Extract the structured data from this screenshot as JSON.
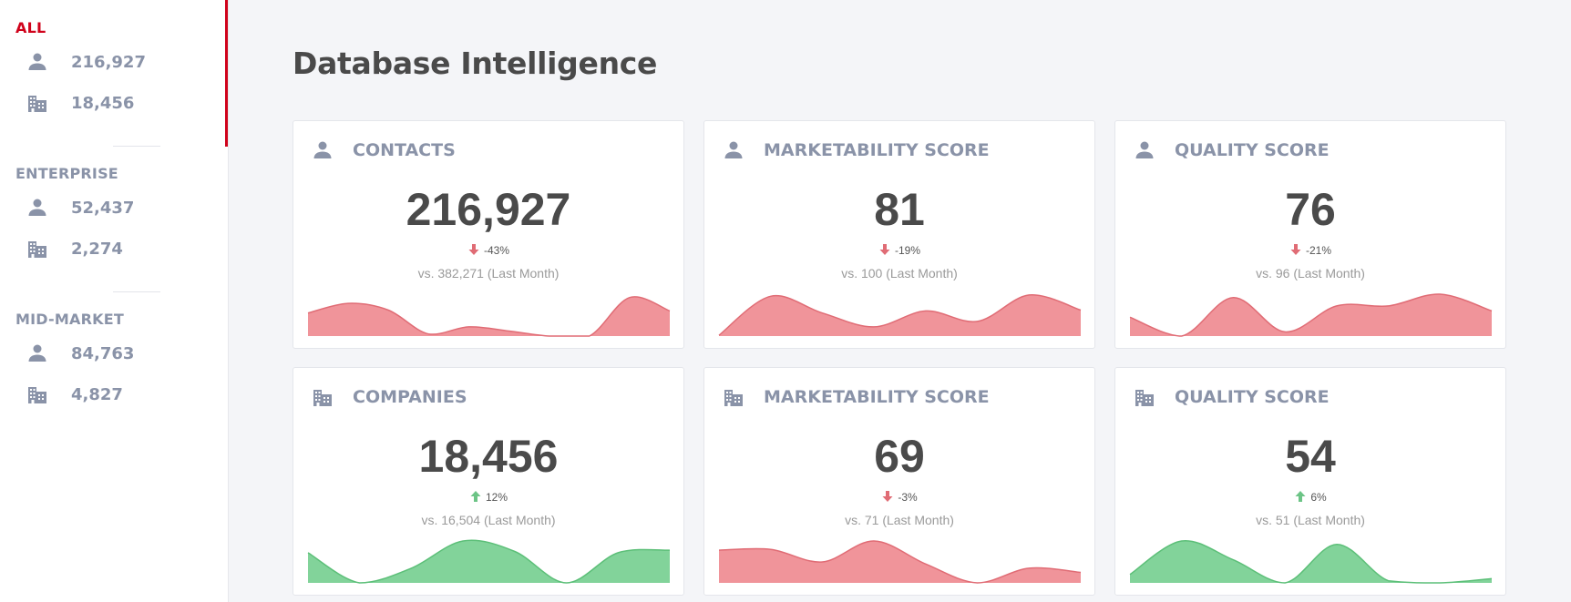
{
  "sidebar": {
    "segments": [
      {
        "title": "ALL",
        "active": true,
        "contacts": "216,927",
        "companies": "18,456"
      },
      {
        "title": "ENTERPRISE",
        "active": false,
        "contacts": "52,437",
        "companies": "2,274"
      },
      {
        "title": "MID-MARKET",
        "active": false,
        "contacts": "84,763",
        "companies": "4,827"
      }
    ],
    "icons": {
      "contacts": "person-icon",
      "companies": "building-icon"
    },
    "active_color": "#d0021b"
  },
  "page": {
    "title": "Database Intelligence"
  },
  "colors": {
    "red_fill": "#f0949a",
    "red_line": "#e06c75",
    "green_fill": "#82d39a",
    "green_line": "#5cbf78",
    "down_arrow": "#e06c75",
    "up_arrow": "#6cc486"
  },
  "cards": [
    {
      "icon": "person-icon",
      "title": "CONTACTS",
      "value": "216,927",
      "trend": "down",
      "change": "-43%",
      "compare": "vs. 382,271 (Last Month)",
      "sparkline": [
        0.55,
        0.78,
        0.62,
        0.05,
        0.22,
        0.12,
        0.0,
        0.0,
        0.92,
        0.6
      ]
    },
    {
      "icon": "person-icon",
      "title": "MARKETABILITY SCORE",
      "value": "81",
      "trend": "down",
      "change": "-19%",
      "compare": "vs. 100 (Last Month)",
      "sparkline": [
        0.02,
        0.95,
        0.55,
        0.22,
        0.6,
        0.35,
        0.98,
        0.62
      ]
    },
    {
      "icon": "person-icon",
      "title": "QUALITY SCORE",
      "value": "76",
      "trend": "down",
      "change": "-21%",
      "compare": "vs. 96 (Last Month)",
      "sparkline": [
        0.45,
        0.0,
        0.92,
        0.1,
        0.72,
        0.72,
        1.0,
        0.6
      ]
    },
    {
      "icon": "building-icon",
      "title": "COMPANIES",
      "value": "18,456",
      "trend": "up",
      "change": "12%",
      "compare": "vs. 16,504 (Last Month)",
      "sparkline": [
        0.72,
        0.0,
        0.35,
        1.0,
        0.75,
        0.0,
        0.72,
        0.78
      ]
    },
    {
      "icon": "building-icon",
      "title": "MARKETABILITY SCORE",
      "value": "69",
      "trend": "down",
      "change": "-3%",
      "compare": "vs. 71 (Last Month)",
      "sparkline": [
        0.78,
        0.8,
        0.5,
        1.0,
        0.45,
        0.0,
        0.35,
        0.25
      ]
    },
    {
      "icon": "building-icon",
      "title": "QUALITY SCORE",
      "value": "54",
      "trend": "up",
      "change": "6%",
      "compare": "vs. 51 (Last Month)",
      "sparkline": [
        0.2,
        1.0,
        0.55,
        0.0,
        0.92,
        0.05,
        0.0,
        0.1
      ]
    }
  ]
}
